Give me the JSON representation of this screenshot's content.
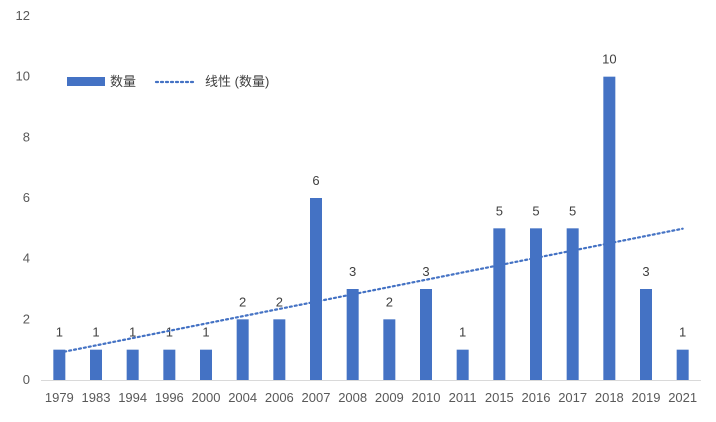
{
  "chart_data": {
    "type": "bar",
    "categories": [
      "1979",
      "1983",
      "1994",
      "1996",
      "2000",
      "2004",
      "2006",
      "2007",
      "2008",
      "2009",
      "2010",
      "2011",
      "2015",
      "2016",
      "2017",
      "2018",
      "2019",
      "2021"
    ],
    "series": [
      {
        "name": "数量",
        "values": [
          1,
          1,
          1,
          1,
          1,
          2,
          2,
          6,
          3,
          2,
          3,
          1,
          5,
          5,
          5,
          10,
          3,
          1
        ]
      }
    ],
    "trendline": {
      "name": "线性 (数量)",
      "type": "linear"
    },
    "ylim": [
      0,
      12
    ],
    "yticks": [
      0,
      2,
      4,
      6,
      8,
      10,
      12
    ],
    "grid": false,
    "legend_position": "top-left",
    "colors": {
      "bar": "#4472C4",
      "trend": "#4472C4"
    }
  }
}
